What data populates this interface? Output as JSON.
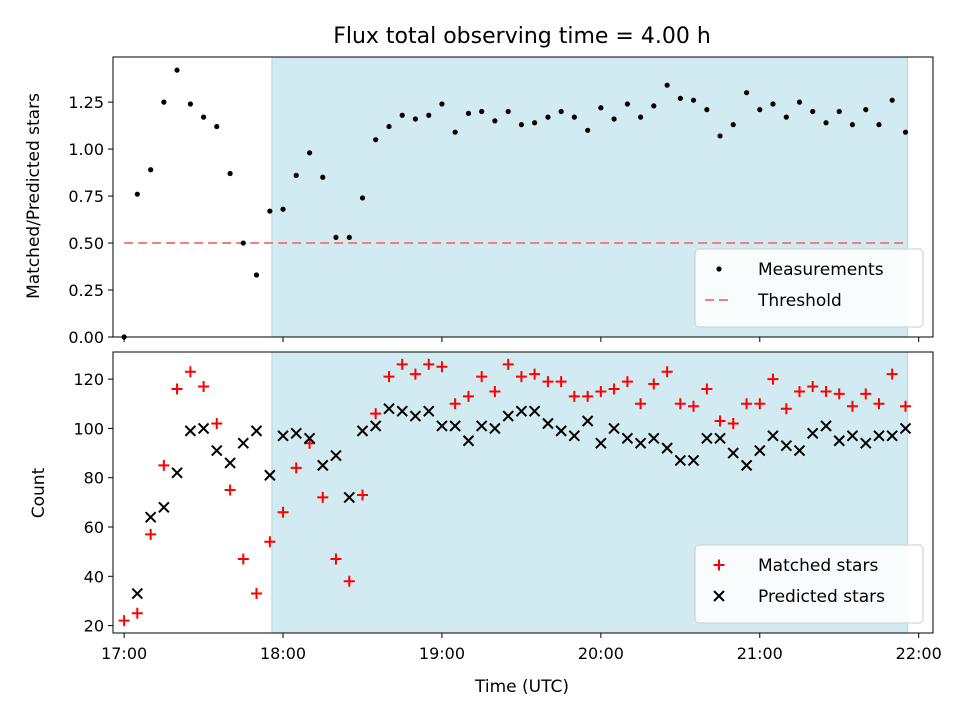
{
  "chart_data": {
    "title": "Flux total observing time = 4.00 h",
    "xlabel": "Time (UTC)",
    "x_ticks": [
      "17:00",
      "18:00",
      "19:00",
      "20:00",
      "21:00",
      "22:00"
    ],
    "x_range_hours": [
      16.93,
      22.09
    ],
    "shaded_span_hours": [
      17.93,
      21.93
    ],
    "shade_color": "#add8e6",
    "panels": [
      {
        "type": "scatter",
        "ylabel": "Matched/Predicted stars",
        "ylim": [
          0.0,
          1.49
        ],
        "y_ticks": [
          "0.00",
          "0.25",
          "0.50",
          "0.75",
          "1.00",
          "1.25"
        ],
        "threshold": {
          "label": "Threshold",
          "value": 0.5,
          "x_start": 17.0,
          "x_end": 21.93,
          "color": "#f08080"
        },
        "legend_position": "lower-right",
        "series": [
          {
            "name": "Measurements",
            "color": "#000000",
            "marker": "dot",
            "x": [
              17.0,
              17.083,
              17.167,
              17.25,
              17.333,
              17.417,
              17.5,
              17.583,
              17.667,
              17.75,
              17.833,
              17.917,
              18.0,
              18.083,
              18.167,
              18.25,
              18.333,
              18.417,
              18.5,
              18.583,
              18.667,
              18.75,
              18.833,
              18.917,
              19.0,
              19.083,
              19.167,
              19.25,
              19.333,
              19.417,
              19.5,
              19.583,
              19.667,
              19.75,
              19.833,
              19.917,
              20.0,
              20.083,
              20.167,
              20.25,
              20.333,
              20.417,
              20.5,
              20.583,
              20.667,
              20.75,
              20.833,
              20.917,
              21.0,
              21.083,
              21.167,
              21.25,
              21.333,
              21.417,
              21.5,
              21.583,
              21.667,
              21.75,
              21.833,
              21.917
            ],
            "y": [
              0.0,
              0.76,
              0.89,
              1.25,
              1.42,
              1.24,
              1.17,
              1.12,
              0.87,
              0.5,
              0.33,
              0.67,
              0.68,
              0.86,
              0.98,
              0.85,
              0.53,
              0.53,
              0.74,
              1.05,
              1.12,
              1.18,
              1.16,
              1.18,
              1.24,
              1.09,
              1.19,
              1.2,
              1.15,
              1.2,
              1.13,
              1.14,
              1.17,
              1.2,
              1.17,
              1.1,
              1.22,
              1.16,
              1.24,
              1.17,
              1.23,
              1.34,
              1.27,
              1.26,
              1.21,
              1.07,
              1.13,
              1.3,
              1.21,
              1.24,
              1.17,
              1.25,
              1.2,
              1.14,
              1.2,
              1.13,
              1.21,
              1.13,
              1.26,
              1.09
            ]
          }
        ]
      },
      {
        "type": "scatter",
        "ylabel": "Count",
        "ylim": [
          17,
          131
        ],
        "y_ticks": [
          "20",
          "40",
          "60",
          "80",
          "100",
          "120"
        ],
        "legend_position": "lower-right",
        "series": [
          {
            "name": "Matched stars",
            "color": "#ff0000",
            "marker": "plus",
            "x": [
              17.0,
              17.083,
              17.167,
              17.25,
              17.333,
              17.417,
              17.5,
              17.583,
              17.667,
              17.75,
              17.833,
              17.917,
              18.0,
              18.083,
              18.167,
              18.25,
              18.333,
              18.417,
              18.5,
              18.583,
              18.667,
              18.75,
              18.833,
              18.917,
              19.0,
              19.083,
              19.167,
              19.25,
              19.333,
              19.417,
              19.5,
              19.583,
              19.667,
              19.75,
              19.833,
              19.917,
              20.0,
              20.083,
              20.167,
              20.25,
              20.333,
              20.417,
              20.5,
              20.583,
              20.667,
              20.75,
              20.833,
              20.917,
              21.0,
              21.083,
              21.167,
              21.25,
              21.333,
              21.417,
              21.5,
              21.583,
              21.667,
              21.75,
              21.833,
              21.917
            ],
            "y": [
              22,
              25,
              57,
              85,
              116,
              123,
              117,
              102,
              75,
              47,
              33,
              54,
              66,
              84,
              94,
              72,
              47,
              38,
              73,
              106,
              121,
              126,
              122,
              126,
              125,
              110,
              113,
              121,
              115,
              126,
              121,
              122,
              119,
              119,
              113,
              113,
              115,
              116,
              119,
              110,
              118,
              123,
              110,
              109,
              116,
              103,
              102,
              110,
              110,
              120,
              108,
              115,
              117,
              115,
              114,
              109,
              114,
              110,
              122,
              109
            ]
          },
          {
            "name": "Predicted stars",
            "color": "#000000",
            "marker": "x",
            "x": [
              17.083,
              17.167,
              17.25,
              17.333,
              17.417,
              17.5,
              17.583,
              17.667,
              17.75,
              17.833,
              17.917,
              18.0,
              18.083,
              18.167,
              18.25,
              18.333,
              18.417,
              18.5,
              18.583,
              18.667,
              18.75,
              18.833,
              18.917,
              19.0,
              19.083,
              19.167,
              19.25,
              19.333,
              19.417,
              19.5,
              19.583,
              19.667,
              19.75,
              19.833,
              19.917,
              20.0,
              20.083,
              20.167,
              20.25,
              20.333,
              20.417,
              20.5,
              20.583,
              20.667,
              20.75,
              20.833,
              20.917,
              21.0,
              21.083,
              21.167,
              21.25,
              21.333,
              21.417,
              21.5,
              21.583,
              21.667,
              21.75,
              21.833,
              21.917
            ],
            "y": [
              33,
              64,
              68,
              82,
              99,
              100,
              91,
              86,
              94,
              99,
              81,
              97,
              98,
              96,
              85,
              89,
              72,
              99,
              101,
              108,
              107,
              105,
              107,
              101,
              101,
              95,
              101,
              100,
              105,
              107,
              107,
              102,
              99,
              97,
              103,
              94,
              100,
              96,
              94,
              96,
              92,
              87,
              87,
              96,
              96,
              90,
              85,
              91,
              97,
              93,
              91,
              98,
              101,
              95,
              97,
              94,
              97,
              97,
              100
            ]
          }
        ]
      }
    ]
  }
}
